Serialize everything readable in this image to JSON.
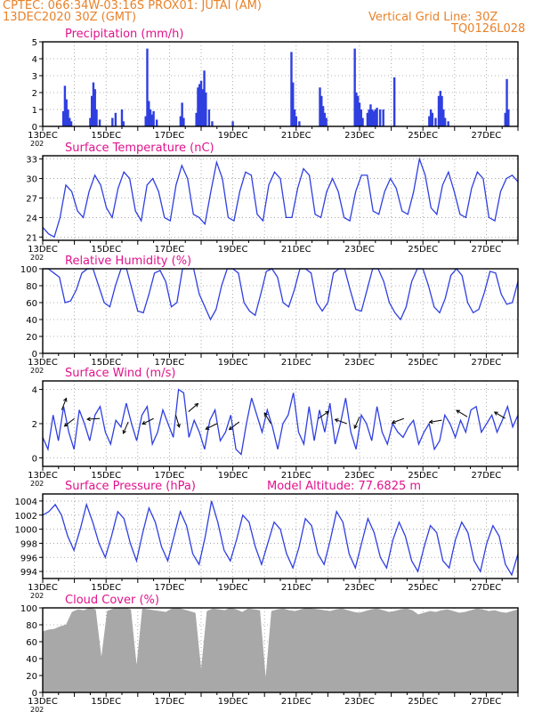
{
  "header": {
    "line1_left": "CPTEC:   066:34W-03:16S   PROX01: JUTAI (AM)",
    "line2_left": "13DEC2020 30Z (GMT)",
    "line2_right": "Vertical Grid Line: 30Z",
    "line3_right": "TQ0126L028"
  },
  "colors": {
    "title": "#e0138c",
    "header": "#e8822a",
    "series": "#2f3fe0",
    "cloud": "#a8a8a8",
    "wind_arrow": "#000000"
  },
  "date_labels": [
    "13DEC",
    "15DEC",
    "17DEC",
    "19DEC",
    "21DEC",
    "23DEC",
    "25DEC",
    "27DEC"
  ],
  "year_stub": "202",
  "x_range_days": [
    0,
    15
  ],
  "chart_data": [
    {
      "type": "bar",
      "title": "Precipitation (mm/h)",
      "ylim": [
        0,
        5
      ],
      "yticks": [
        0,
        1,
        2,
        3,
        4,
        5
      ],
      "points": [
        [
          0.65,
          0.9
        ],
        [
          0.7,
          2.4
        ],
        [
          0.75,
          1.6
        ],
        [
          0.8,
          1.0
        ],
        [
          0.85,
          0.5
        ],
        [
          0.9,
          0.3
        ],
        [
          1.5,
          0.5
        ],
        [
          1.55,
          1.8
        ],
        [
          1.6,
          2.6
        ],
        [
          1.65,
          2.2
        ],
        [
          1.7,
          1.0
        ],
        [
          1.8,
          0.4
        ],
        [
          2.2,
          0.5
        ],
        [
          2.3,
          0.8
        ],
        [
          2.5,
          1.0
        ],
        [
          2.55,
          0.3
        ],
        [
          3.25,
          0.6
        ],
        [
          3.3,
          4.6
        ],
        [
          3.35,
          1.5
        ],
        [
          3.4,
          1.0
        ],
        [
          3.45,
          0.7
        ],
        [
          3.5,
          0.9
        ],
        [
          3.6,
          0.4
        ],
        [
          4.35,
          0.6
        ],
        [
          4.4,
          1.4
        ],
        [
          4.45,
          0.5
        ],
        [
          4.85,
          0.8
        ],
        [
          4.9,
          2.3
        ],
        [
          4.95,
          2.5
        ],
        [
          5.0,
          2.7
        ],
        [
          5.05,
          2.2
        ],
        [
          5.1,
          3.3
        ],
        [
          5.15,
          2.0
        ],
        [
          5.25,
          1.0
        ],
        [
          5.35,
          0.3
        ],
        [
          6.0,
          0.3
        ],
        [
          7.85,
          4.4
        ],
        [
          7.9,
          2.6
        ],
        [
          7.95,
          1.0
        ],
        [
          8.0,
          0.6
        ],
        [
          8.1,
          0.3
        ],
        [
          8.75,
          2.3
        ],
        [
          8.8,
          1.8
        ],
        [
          8.85,
          1.2
        ],
        [
          8.9,
          0.8
        ],
        [
          8.95,
          0.5
        ],
        [
          9.85,
          4.6
        ],
        [
          9.9,
          2.0
        ],
        [
          9.95,
          1.8
        ],
        [
          10.0,
          1.4
        ],
        [
          10.05,
          1.0
        ],
        [
          10.1,
          0.5
        ],
        [
          10.25,
          0.8
        ],
        [
          10.3,
          1.0
        ],
        [
          10.35,
          1.3
        ],
        [
          10.4,
          1.0
        ],
        [
          10.45,
          0.9
        ],
        [
          10.5,
          1.0
        ],
        [
          10.55,
          1.1
        ],
        [
          10.65,
          1.0
        ],
        [
          10.75,
          1.0
        ],
        [
          11.1,
          2.9
        ],
        [
          12.2,
          0.6
        ],
        [
          12.25,
          1.0
        ],
        [
          12.3,
          0.8
        ],
        [
          12.4,
          0.5
        ],
        [
          12.5,
          1.8
        ],
        [
          12.55,
          2.1
        ],
        [
          12.6,
          1.8
        ],
        [
          12.65,
          1.0
        ],
        [
          12.7,
          0.5
        ],
        [
          12.8,
          0.3
        ],
        [
          14.6,
          0.8
        ],
        [
          14.65,
          2.8
        ],
        [
          14.7,
          1.0
        ]
      ]
    },
    {
      "type": "line",
      "title": "Surface Temperature (nC)",
      "ylim": [
        20.5,
        33.5
      ],
      "yticks": [
        21,
        24,
        27,
        30,
        33
      ],
      "values": [
        22.5,
        21.5,
        21.0,
        24.0,
        29.0,
        28.0,
        25.0,
        24.0,
        28.0,
        30.5,
        29.0,
        25.5,
        24.0,
        28.5,
        31.0,
        30.0,
        25.0,
        23.5,
        29.0,
        30.0,
        28.0,
        24.0,
        23.5,
        29.0,
        32.0,
        30.0,
        24.5,
        24.0,
        23.0,
        28.0,
        32.5,
        30.0,
        24.0,
        23.5,
        28.0,
        31.0,
        30.5,
        24.5,
        23.5,
        29.0,
        31.0,
        30.0,
        24.0,
        24.0,
        28.5,
        31.5,
        30.5,
        24.5,
        24.0,
        28.0,
        30.0,
        28.0,
        24.0,
        23.5,
        28.0,
        30.5,
        30.5,
        25.0,
        24.5,
        28.0,
        30.0,
        28.5,
        25.0,
        24.5,
        28.0,
        33.0,
        30.5,
        25.5,
        24.5,
        29.0,
        31.0,
        28.0,
        24.5,
        24.0,
        28.5,
        31.0,
        30.0,
        24.0,
        23.5,
        28.0,
        30.0,
        30.5,
        29.5
      ]
    },
    {
      "type": "line",
      "title": "Relative Humidity (%)",
      "ylim": [
        0,
        100
      ],
      "yticks": [
        0,
        20,
        40,
        60,
        80,
        100
      ],
      "values": [
        100,
        100,
        95,
        90,
        60,
        62,
        75,
        95,
        100,
        100,
        80,
        60,
        55,
        80,
        100,
        100,
        75,
        50,
        48,
        70,
        95,
        98,
        85,
        55,
        60,
        100,
        100,
        100,
        70,
        55,
        40,
        52,
        80,
        100,
        100,
        95,
        60,
        50,
        45,
        70,
        97,
        100,
        90,
        60,
        55,
        75,
        100,
        100,
        95,
        60,
        50,
        60,
        95,
        100,
        100,
        75,
        52,
        50,
        75,
        100,
        100,
        85,
        60,
        48,
        40,
        55,
        85,
        100,
        100,
        80,
        55,
        48,
        65,
        92,
        100,
        92,
        60,
        48,
        52,
        72,
        97,
        95,
        70,
        58,
        60,
        85
      ]
    },
    {
      "type": "line",
      "title": "Surface Wind (m/s)",
      "ylim": [
        -0.5,
        4.5
      ],
      "yticks": [
        0,
        2,
        4
      ],
      "values": [
        1.2,
        0.5,
        2.5,
        1.0,
        3.0,
        1.5,
        0.5,
        2.8,
        2.0,
        1.0,
        2.5,
        3.0,
        1.5,
        0.8,
        2.2,
        1.8,
        3.2,
        2.0,
        1.0,
        2.5,
        3.0,
        0.8,
        1.5,
        2.8,
        2.0,
        1.2,
        4.0,
        3.8,
        1.2,
        2.2,
        1.5,
        0.5,
        2.2,
        2.8,
        1.0,
        1.5,
        2.5,
        0.5,
        0.2,
        2.0,
        3.5,
        2.5,
        1.5,
        2.8,
        1.8,
        0.5,
        2.0,
        2.5,
        3.8,
        1.5,
        0.8,
        3.0,
        1.0,
        2.8,
        1.5,
        3.2,
        0.8,
        2.0,
        3.5,
        1.5,
        0.5,
        2.5,
        2.0,
        1.0,
        3.0,
        1.5,
        0.8,
        2.0,
        1.5,
        1.2,
        1.8,
        2.2,
        0.8,
        1.5,
        2.0,
        0.5,
        1.0,
        2.5,
        2.0,
        1.2,
        2.2,
        1.5,
        2.8,
        3.0,
        1.5,
        2.0,
        2.5,
        1.5,
        2.2,
        3.0,
        1.8,
        2.5
      ],
      "arrows": [
        [
          0.6,
          2.8,
          1.2
        ],
        [
          1.0,
          2.3,
          3.8
        ],
        [
          1.8,
          2.3,
          3.2
        ],
        [
          2.7,
          2.1,
          4.3
        ],
        [
          3.5,
          2.3,
          3.6
        ],
        [
          4.2,
          2.5,
          5.0
        ],
        [
          4.6,
          2.7,
          0.7
        ],
        [
          5.5,
          2.0,
          3.6
        ],
        [
          6.2,
          2.1,
          3.8
        ],
        [
          7.2,
          2.0,
          2.1
        ],
        [
          8.7,
          2.3,
          0.6
        ],
        [
          9.6,
          2.0,
          2.8
        ],
        [
          10.0,
          2.4,
          4.3
        ],
        [
          11.4,
          2.3,
          3.5
        ],
        [
          12.6,
          2.2,
          3.3
        ],
        [
          13.4,
          2.4,
          2.6
        ],
        [
          14.6,
          2.3,
          2.6
        ]
      ]
    },
    {
      "type": "line",
      "title": "Surface Pressure (hPa)",
      "annotation": "Model Altitude: 77.6825 m",
      "ylim": [
        993,
        1005
      ],
      "yticks": [
        994,
        996,
        998,
        1000,
        1002,
        1004
      ],
      "values": [
        1002.0,
        1002.5,
        1003.5,
        1002.0,
        999.0,
        997.0,
        1000.0,
        1003.5,
        1001.0,
        998.0,
        996.0,
        999.0,
        1002.5,
        1001.5,
        998.0,
        995.5,
        999.5,
        1003.0,
        1001.0,
        997.5,
        995.5,
        999.0,
        1002.5,
        1000.5,
        996.5,
        995.0,
        999.0,
        1004.0,
        1001.0,
        997.0,
        995.5,
        998.5,
        1002.0,
        1001.0,
        997.5,
        995.0,
        998.0,
        1001.0,
        1000.0,
        996.5,
        994.5,
        997.5,
        1001.5,
        1000.5,
        996.5,
        995.0,
        998.5,
        1002.5,
        1001.0,
        996.5,
        994.5,
        998.0,
        1001.5,
        999.5,
        996.0,
        994.5,
        998.5,
        1001.0,
        999.0,
        995.5,
        994.0,
        997.5,
        1000.5,
        999.5,
        995.5,
        994.5,
        998.5,
        1001.0,
        999.5,
        995.5,
        994.0,
        998.0,
        1000.5,
        999.0,
        995.0,
        993.5,
        996.5
      ]
    },
    {
      "type": "area",
      "title": "Cloud Cover (%)",
      "ylim": [
        0,
        100
      ],
      "yticks": [
        0,
        20,
        40,
        60,
        80,
        100
      ],
      "values": [
        72,
        74,
        75,
        78,
        80,
        95,
        98,
        97,
        100,
        98,
        40,
        96,
        99,
        100,
        100,
        98,
        30,
        99,
        98,
        97,
        96,
        95,
        99,
        100,
        98,
        96,
        94,
        25,
        96,
        99,
        98,
        97,
        100,
        98,
        95,
        99,
        98,
        97,
        15,
        96,
        98,
        99,
        97,
        96,
        98,
        100,
        99,
        98,
        97,
        96,
        98,
        99,
        97,
        95,
        94,
        96,
        98,
        99,
        97,
        95,
        96,
        98,
        99,
        97,
        92,
        94,
        96,
        95,
        97,
        98,
        96,
        94,
        95,
        97,
        99,
        98,
        96,
        97,
        95,
        94,
        96,
        98
      ]
    }
  ]
}
